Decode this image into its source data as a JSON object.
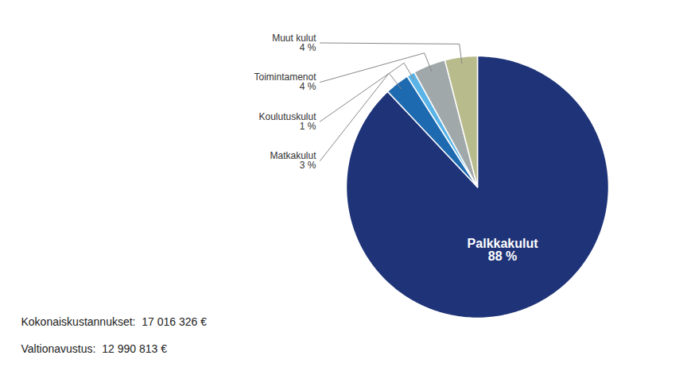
{
  "chart_data": {
    "type": "pie",
    "categories": [
      "Palkkakulut",
      "Matkakulut",
      "Koulutuskulut",
      "Toimintamenot",
      "Muut kulut"
    ],
    "values": [
      88,
      3,
      1,
      4,
      4
    ],
    "colors": [
      "#1f3478",
      "#1e6ab0",
      "#5ab4e8",
      "#a0a8aa",
      "#b8bc8c"
    ],
    "data_labels": true,
    "value_labels": [
      "88 %",
      "3 %",
      "1 %",
      "4 %",
      "4 %"
    ],
    "annotations": [
      "Kokonaiskustannukset:  17 016 326 €",
      "Valtionavustus:  12 990 813 €"
    ]
  }
}
